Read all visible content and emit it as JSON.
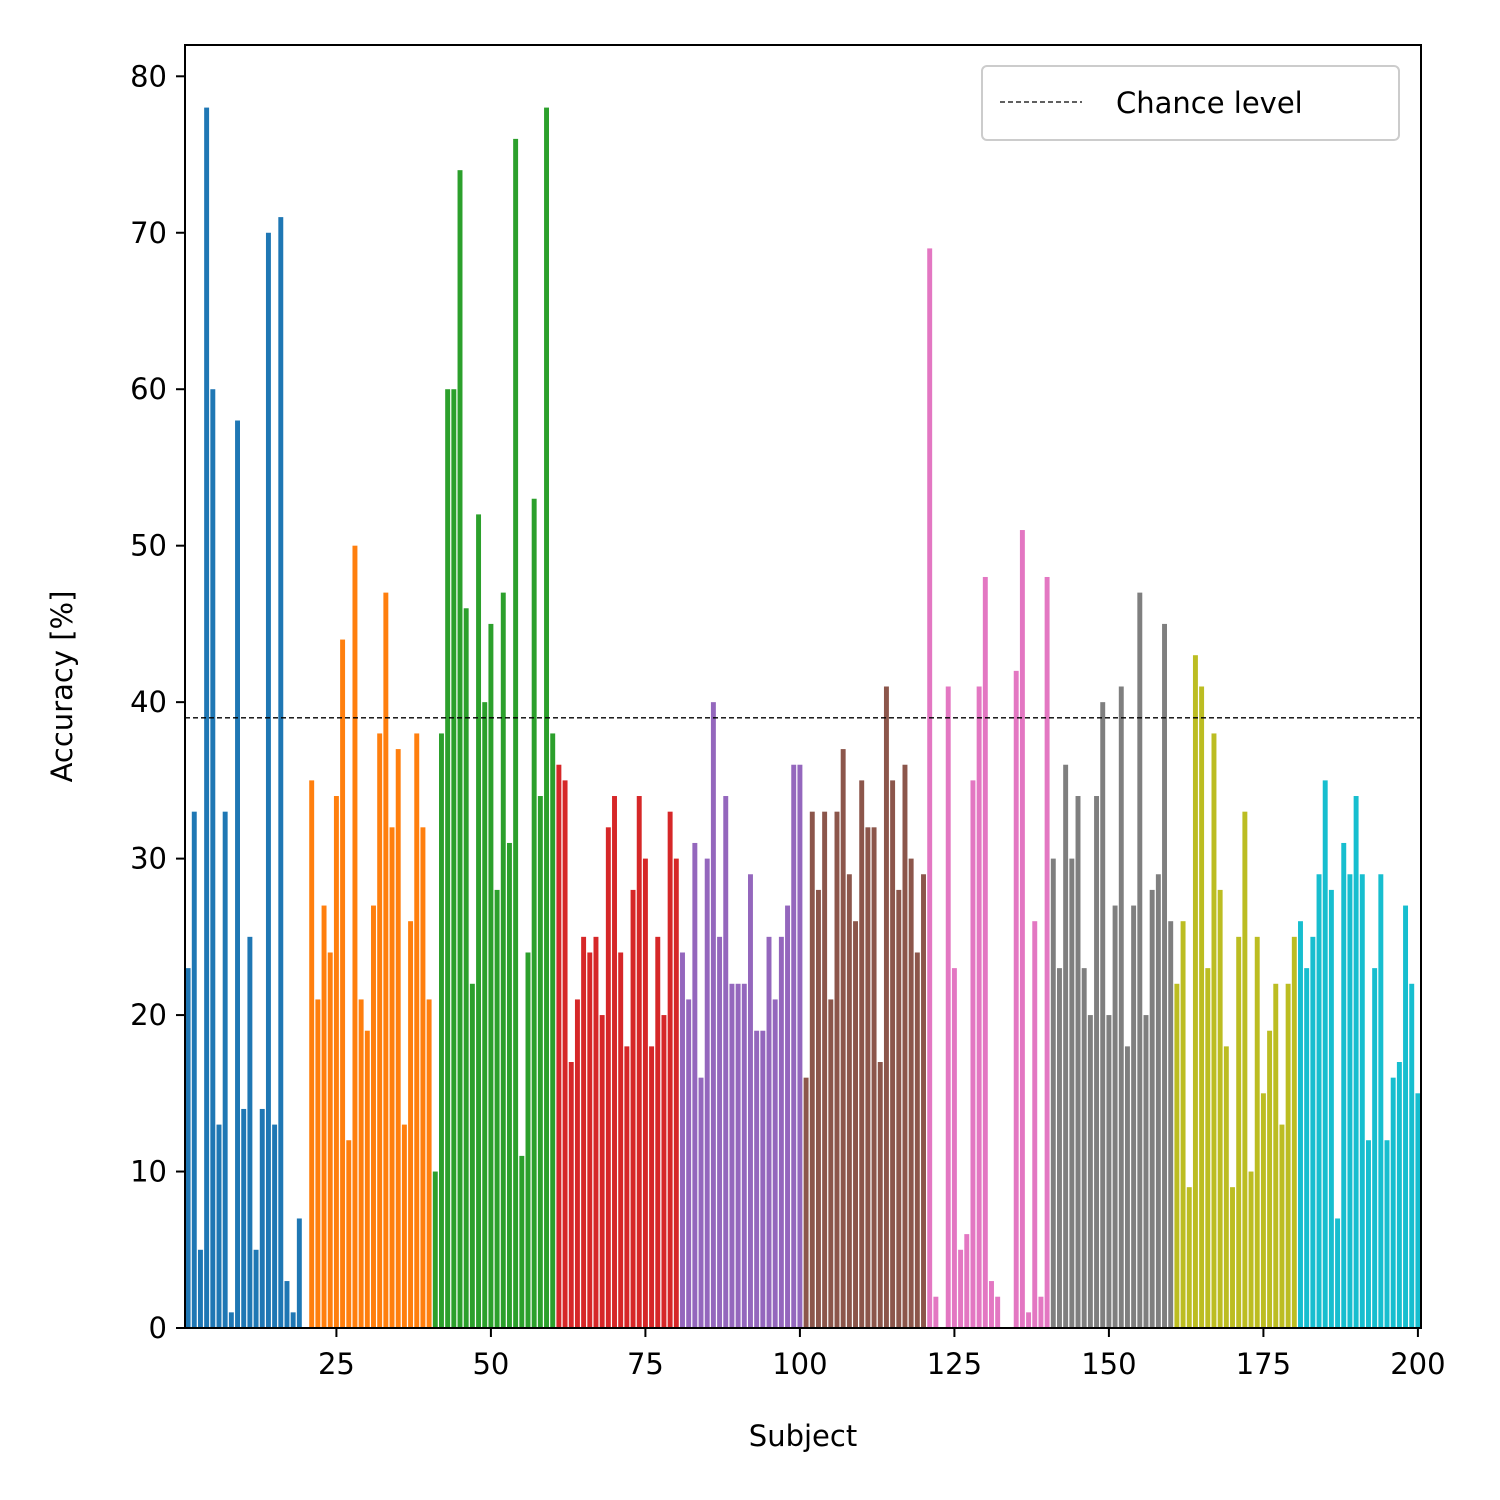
{
  "chart_data": {
    "type": "bar",
    "title": "",
    "xlabel": "Subject",
    "ylabel": "Accuracy [%]",
    "xlim": [
      0.5,
      200.5
    ],
    "ylim": [
      0,
      82
    ],
    "xticks": [
      25,
      50,
      75,
      100,
      125,
      150,
      175,
      200
    ],
    "yticks": [
      0,
      10,
      20,
      30,
      40,
      50,
      60,
      70,
      80
    ],
    "grid": false,
    "legend_position": "top-right",
    "reference_line": {
      "label": "Chance level",
      "y": 39,
      "style": "dashed",
      "color": "#000000"
    },
    "series": [
      {
        "color": "#1f77b4",
        "x": [
          1,
          2,
          3,
          4,
          5,
          6,
          7,
          8,
          9,
          10,
          11,
          12,
          13,
          14,
          15,
          16,
          17,
          18,
          19,
          20
        ],
        "values": [
          23,
          33,
          5,
          78,
          60,
          13,
          33,
          1,
          58,
          14,
          25,
          5,
          14,
          70,
          13,
          71,
          3,
          1,
          7,
          0
        ]
      },
      {
        "color": "#ff7f0e",
        "x": [
          21,
          22,
          23,
          24,
          25,
          26,
          27,
          28,
          29,
          30,
          31,
          32,
          33,
          34,
          35,
          36,
          37,
          38,
          39,
          40
        ],
        "values": [
          35,
          21,
          27,
          24,
          34,
          44,
          12,
          50,
          21,
          19,
          27,
          38,
          47,
          32,
          37,
          13,
          26,
          38,
          32,
          21
        ]
      },
      {
        "color": "#2ca02c",
        "x": [
          41,
          42,
          43,
          44,
          45,
          46,
          47,
          48,
          49,
          50,
          51,
          52,
          53,
          54,
          55,
          56,
          57,
          58,
          59,
          60
        ],
        "values": [
          10,
          38,
          60,
          60,
          74,
          46,
          22,
          52,
          40,
          45,
          28,
          47,
          31,
          76,
          11,
          24,
          53,
          34,
          78,
          38
        ]
      },
      {
        "color": "#d62728",
        "x": [
          61,
          62,
          63,
          64,
          65,
          66,
          67,
          68,
          69,
          70,
          71,
          72,
          73,
          74,
          75,
          76,
          77,
          78,
          79,
          80
        ],
        "values": [
          36,
          35,
          17,
          21,
          25,
          24,
          25,
          20,
          32,
          34,
          24,
          18,
          28,
          34,
          30,
          18,
          25,
          20,
          33,
          30
        ]
      },
      {
        "color": "#9467bd",
        "x": [
          81,
          82,
          83,
          84,
          85,
          86,
          87,
          88,
          89,
          90,
          91,
          92,
          93,
          94,
          95,
          96,
          97,
          98,
          99,
          100
        ],
        "values": [
          24,
          21,
          31,
          16,
          30,
          40,
          25,
          34,
          22,
          22,
          22,
          29,
          19,
          19,
          25,
          21,
          25,
          27,
          36,
          36
        ]
      },
      {
        "color": "#8c564b",
        "x": [
          101,
          102,
          103,
          104,
          105,
          106,
          107,
          108,
          109,
          110,
          111,
          112,
          113,
          114,
          115,
          116,
          117,
          118,
          119,
          120
        ],
        "values": [
          16,
          33,
          28,
          33,
          21,
          33,
          37,
          29,
          26,
          35,
          32,
          32,
          17,
          41,
          35,
          28,
          36,
          30,
          24,
          29
        ]
      },
      {
        "color": "#e377c2",
        "x": [
          121,
          122,
          123,
          124,
          125,
          126,
          127,
          128,
          129,
          130,
          131,
          132,
          133,
          134,
          135,
          136,
          137,
          138,
          139,
          140
        ],
        "values": [
          69,
          2,
          0,
          41,
          23,
          5,
          6,
          35,
          41,
          48,
          3,
          2,
          0,
          0,
          42,
          51,
          1,
          26,
          2,
          48
        ]
      },
      {
        "color": "#7f7f7f",
        "x": [
          141,
          142,
          143,
          144,
          145,
          146,
          147,
          148,
          149,
          150,
          151,
          152,
          153,
          154,
          155,
          156,
          157,
          158,
          159,
          160
        ],
        "values": [
          30,
          23,
          36,
          30,
          34,
          23,
          20,
          34,
          40,
          20,
          27,
          41,
          18,
          27,
          47,
          20,
          28,
          29,
          45,
          26
        ]
      },
      {
        "color": "#bcbd22",
        "x": [
          161,
          162,
          163,
          164,
          165,
          166,
          167,
          168,
          169,
          170,
          171,
          172,
          173,
          174,
          175,
          176,
          177,
          178,
          179,
          180
        ],
        "values": [
          22,
          26,
          9,
          43,
          41,
          23,
          38,
          28,
          18,
          9,
          25,
          33,
          10,
          25,
          15,
          19,
          22,
          13,
          22,
          25
        ]
      },
      {
        "color": "#17becf",
        "x": [
          181,
          182,
          183,
          184,
          185,
          186,
          187,
          188,
          189,
          190,
          191,
          192,
          193,
          194,
          195,
          196,
          197,
          198,
          199,
          200
        ],
        "values": [
          26,
          23,
          25,
          29,
          35,
          28,
          7,
          31,
          29,
          34,
          29,
          12,
          23,
          29,
          12,
          16,
          17,
          27,
          22,
          15
        ]
      }
    ]
  }
}
